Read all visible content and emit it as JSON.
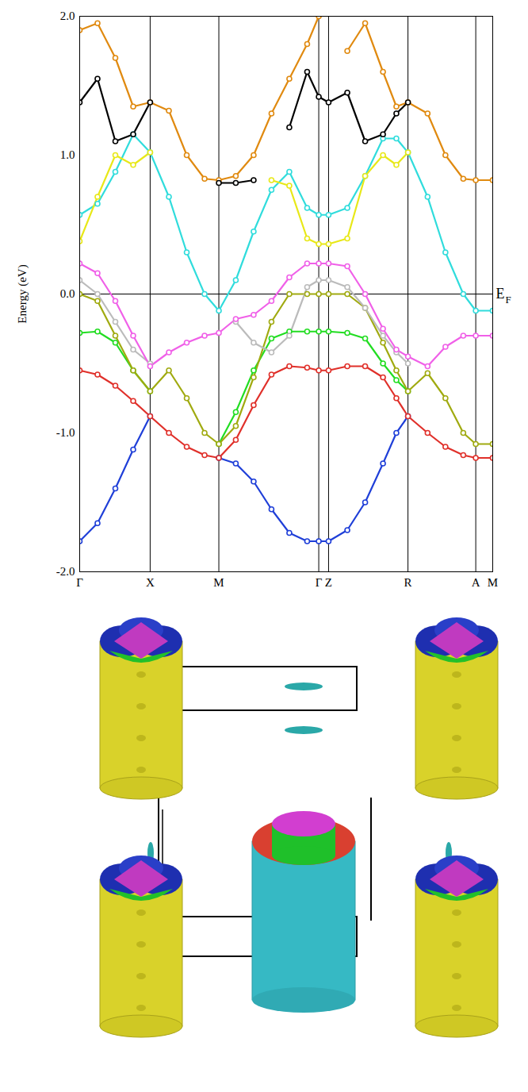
{
  "chart_data": {
    "type": "line",
    "y_label": "Energy (eV)",
    "x": [
      0,
      20,
      40,
      60,
      79,
      100,
      120,
      140,
      156,
      175,
      195,
      215,
      235,
      255,
      268,
      279,
      300,
      320,
      340,
      355,
      368,
      390,
      410,
      430,
      444,
      463
    ],
    "xlim": [
      0,
      463
    ],
    "xticks": [
      {
        "value": 0,
        "label": "Γ"
      },
      {
        "value": 79,
        "label": "X"
      },
      {
        "value": 156,
        "label": "M"
      },
      {
        "value": 268,
        "label": "Γ"
      },
      {
        "value": 279,
        "label": "Z"
      },
      {
        "value": 368,
        "label": "R"
      },
      {
        "value": 444,
        "label": "A"
      },
      {
        "value": 463,
        "label": "M"
      }
    ],
    "ylim": [
      -2,
      2
    ],
    "yticks": [
      {
        "value": -2,
        "label": "-2.0"
      },
      {
        "value": -1,
        "label": "-1.0"
      },
      {
        "value": 0,
        "label": "0.0"
      },
      {
        "value": 1,
        "label": "1.0"
      },
      {
        "value": 2,
        "label": "2.0"
      }
    ],
    "grid": true,
    "marker": "circle",
    "annotations": [
      {
        "x": 463,
        "y": 0,
        "text": "E",
        "subscript": "F"
      }
    ],
    "series": [
      {
        "color": "#1f3fd8",
        "values": [
          -1.78,
          -1.65,
          -1.4,
          -1.12,
          -0.88,
          null,
          null,
          null,
          -1.18,
          -1.22,
          -1.35,
          -1.55,
          -1.72,
          -1.78,
          -1.78,
          -1.78,
          -1.7,
          -1.5,
          -1.22,
          -1.0,
          -0.88,
          null,
          null,
          null,
          null,
          null
        ]
      },
      {
        "color": "#e0302a",
        "values": [
          -0.55,
          -0.58,
          -0.66,
          -0.77,
          -0.88,
          -1.0,
          -1.1,
          -1.16,
          -1.18,
          -1.05,
          -0.8,
          -0.58,
          -0.52,
          -0.53,
          -0.55,
          -0.55,
          -0.52,
          -0.52,
          -0.6,
          -0.75,
          -0.88,
          -1.0,
          -1.1,
          -1.16,
          -1.18,
          -1.18
        ]
      },
      {
        "color": "#22dd22",
        "values": [
          -0.28,
          -0.27,
          -0.35,
          -0.55,
          -0.7,
          null,
          null,
          null,
          -1.08,
          -0.85,
          -0.55,
          -0.32,
          -0.27,
          -0.27,
          -0.27,
          -0.27,
          -0.28,
          -0.32,
          -0.5,
          -0.62,
          -0.7,
          null,
          null,
          null,
          null,
          null
        ]
      },
      {
        "color": "#a0aa10",
        "values": [
          0.0,
          -0.05,
          -0.3,
          -0.55,
          -0.7,
          -0.55,
          -0.75,
          -1.0,
          -1.08,
          -0.95,
          -0.6,
          -0.2,
          0.0,
          0.0,
          0.0,
          0.0,
          0.0,
          -0.1,
          -0.35,
          -0.55,
          -0.7,
          -0.57,
          -0.75,
          -1.0,
          -1.08,
          -1.08
        ]
      },
      {
        "color": "#bbbbbb",
        "values": [
          0.1,
          0.0,
          -0.2,
          -0.4,
          -0.5,
          null,
          null,
          null,
          null,
          -0.2,
          -0.35,
          -0.42,
          -0.3,
          0.05,
          0.1,
          0.1,
          0.05,
          -0.1,
          -0.3,
          -0.42,
          -0.5,
          null,
          null,
          null,
          null,
          null
        ]
      },
      {
        "color": "#f060e8",
        "values": [
          0.22,
          0.15,
          -0.05,
          -0.3,
          -0.52,
          -0.42,
          -0.35,
          -0.3,
          -0.28,
          -0.18,
          -0.15,
          -0.05,
          0.12,
          0.22,
          0.22,
          0.22,
          0.2,
          0.0,
          -0.25,
          -0.4,
          -0.45,
          -0.52,
          -0.38,
          -0.3,
          -0.3,
          -0.3
        ]
      },
      {
        "color": "#30dcdc",
        "values": [
          0.57,
          0.65,
          0.88,
          1.15,
          1.02,
          0.7,
          0.3,
          0.0,
          -0.12,
          0.1,
          0.45,
          0.75,
          0.88,
          0.62,
          0.57,
          0.57,
          0.62,
          0.85,
          1.12,
          1.12,
          1.02,
          0.7,
          0.3,
          0.0,
          -0.12,
          -0.12
        ]
      },
      {
        "color": "#e8e818",
        "values": [
          0.38,
          0.7,
          1.0,
          0.93,
          1.02,
          null,
          null,
          null,
          null,
          null,
          null,
          0.82,
          0.78,
          0.4,
          0.36,
          0.36,
          0.4,
          0.85,
          1.0,
          0.93,
          1.02,
          null,
          null,
          null,
          null,
          null
        ]
      },
      {
        "color": "#e08a10",
        "values": [
          1.9,
          1.95,
          1.7,
          1.35,
          1.38,
          1.32,
          1.0,
          0.83,
          0.82,
          0.85,
          1.0,
          1.3,
          1.55,
          1.8,
          2.0,
          null,
          1.75,
          1.95,
          1.6,
          1.35,
          1.38,
          1.3,
          1.0,
          0.83,
          0.82,
          0.82
        ]
      },
      {
        "color": "#000000",
        "values": [
          1.38,
          1.55,
          1.1,
          1.15,
          1.38,
          null,
          null,
          null,
          0.8,
          0.8,
          0.82,
          null,
          1.2,
          1.6,
          1.42,
          1.38,
          1.45,
          1.1,
          1.15,
          1.3,
          1.38,
          null,
          null,
          null,
          null,
          null
        ]
      }
    ]
  }
}
